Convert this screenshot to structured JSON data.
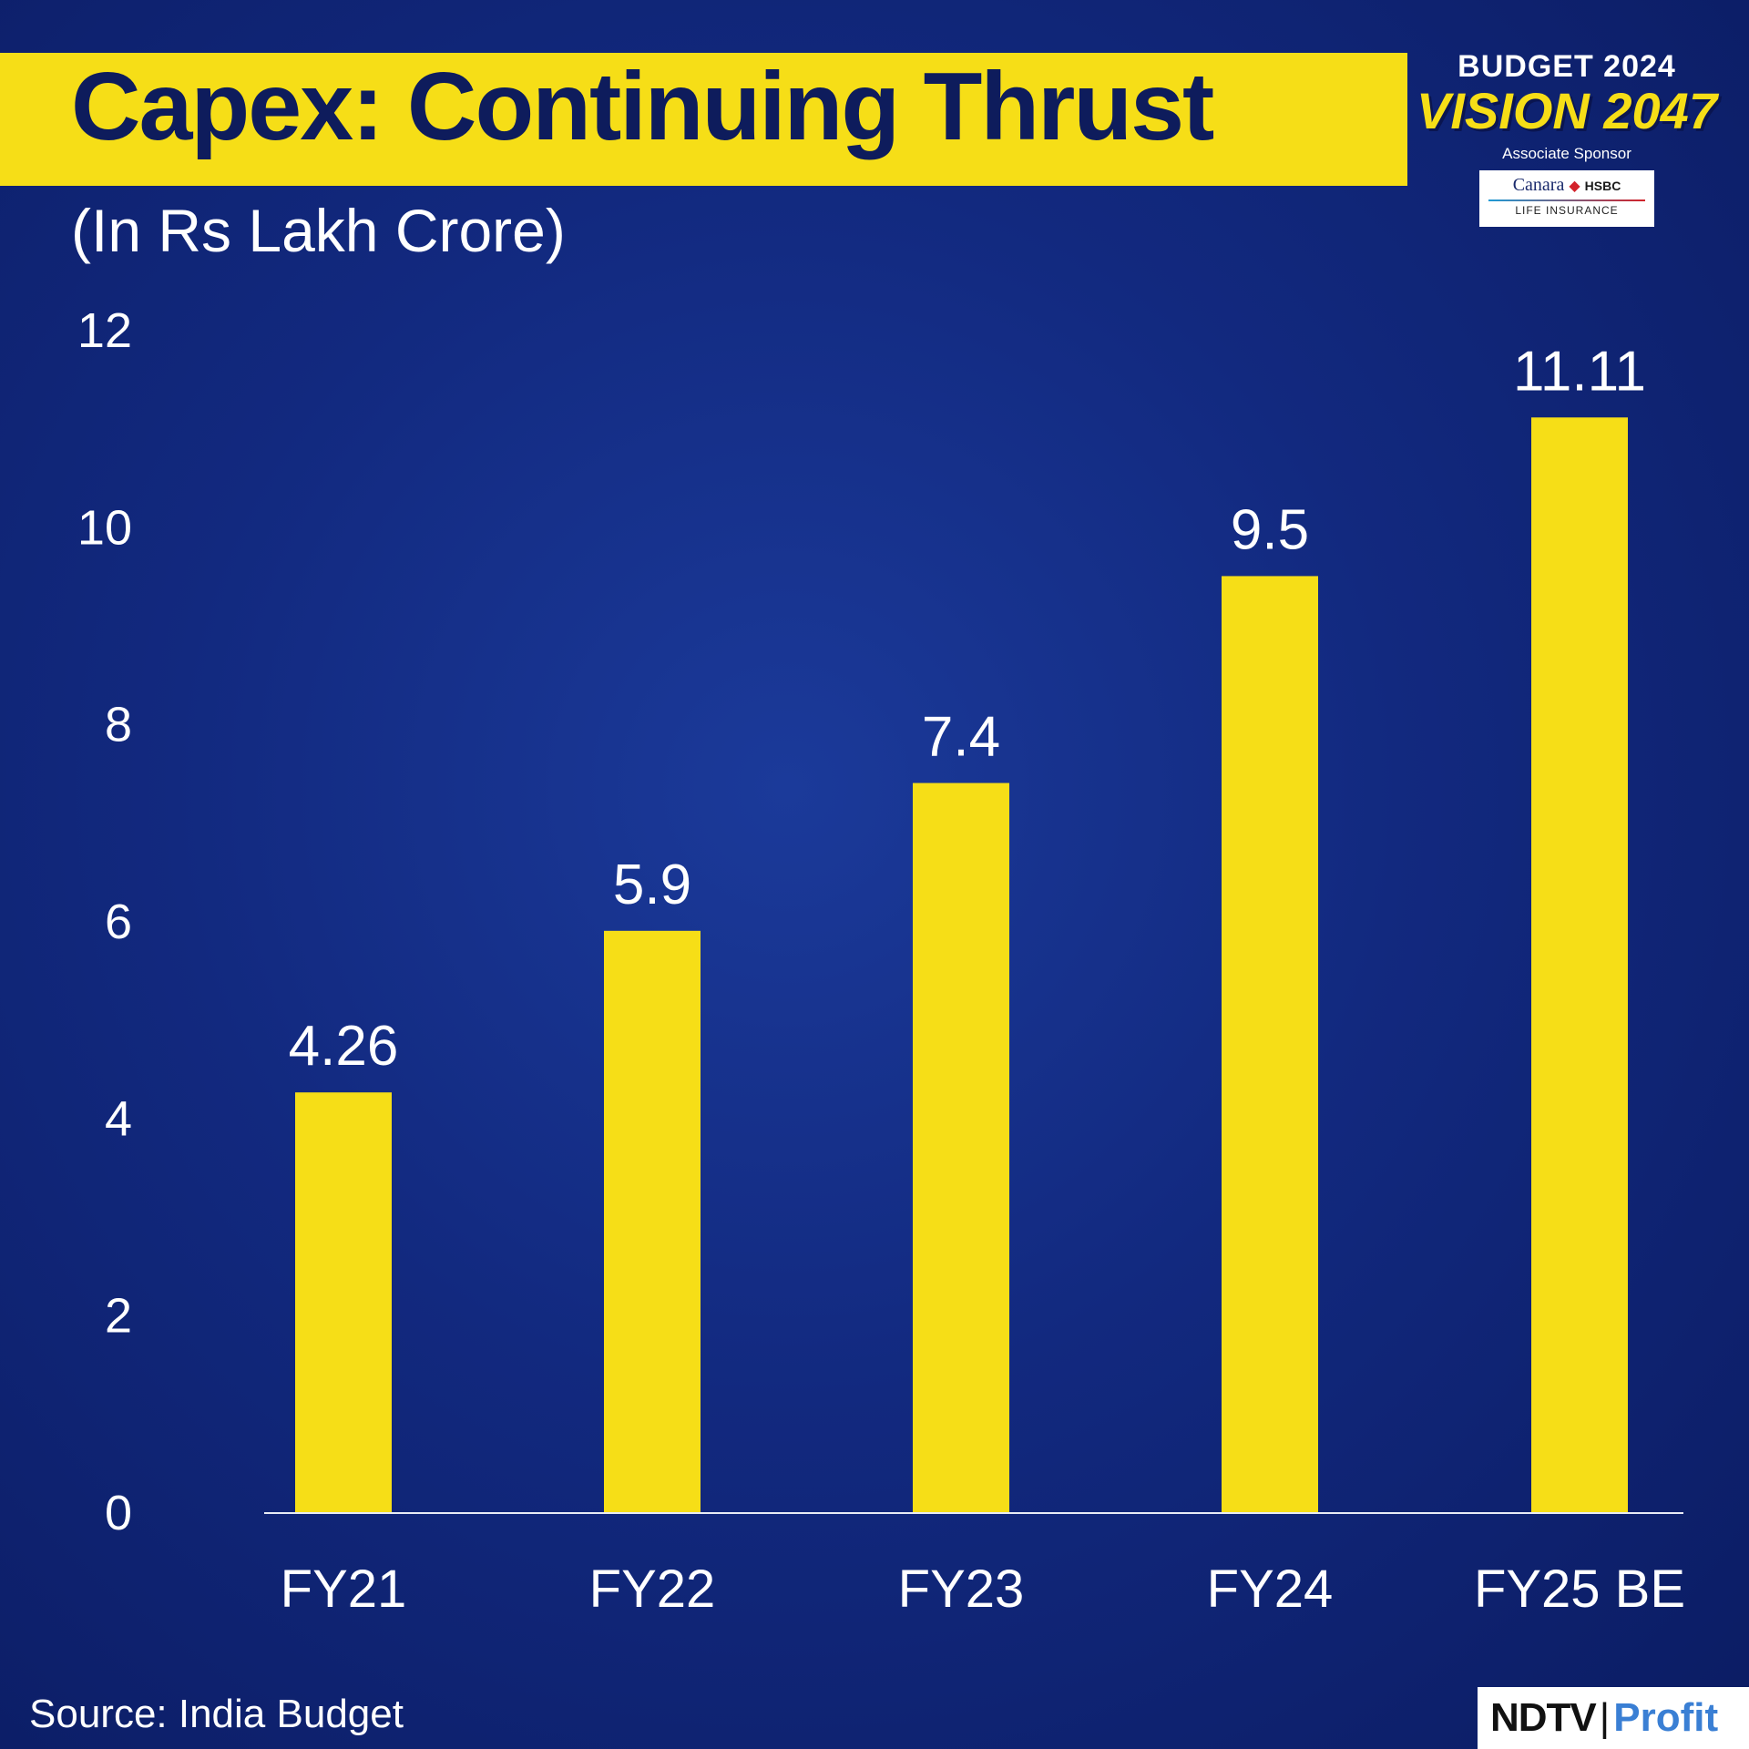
{
  "header": {
    "title": "Capex: Continuing Thrust",
    "unit": "(In Rs Lakh Crore)"
  },
  "sponsor": {
    "budget": "BUDGET 2024",
    "vision": "VISION 2047",
    "associate": "Associate Sponsor",
    "partner_canara": "Canara",
    "partner_hsbc": "HSBC",
    "partner_line2": "LIFE INSURANCE"
  },
  "footer": {
    "source": "Source: India Budget",
    "brand_ndtv": "NDTV",
    "brand_profit": "Profit"
  },
  "colors": {
    "bar": "#f6de17",
    "axis": "#e8ecf5",
    "text": "#ffffff"
  },
  "chart_data": {
    "type": "bar",
    "title": "Capex: Continuing Thrust",
    "ylabel": "(In Rs Lakh Crore)",
    "xlabel": "",
    "categories": [
      "FY21",
      "FY22",
      "FY23",
      "FY24",
      "FY25 BE"
    ],
    "values": [
      4.26,
      5.9,
      7.4,
      9.5,
      11.11
    ],
    "value_labels": [
      "4.26",
      "5.9",
      "7.4",
      "9.5",
      "11.11"
    ],
    "yticks": [
      0,
      2,
      4,
      6,
      8,
      10,
      12
    ],
    "ylim": [
      0,
      12
    ],
    "grid": false,
    "legend": "none"
  }
}
